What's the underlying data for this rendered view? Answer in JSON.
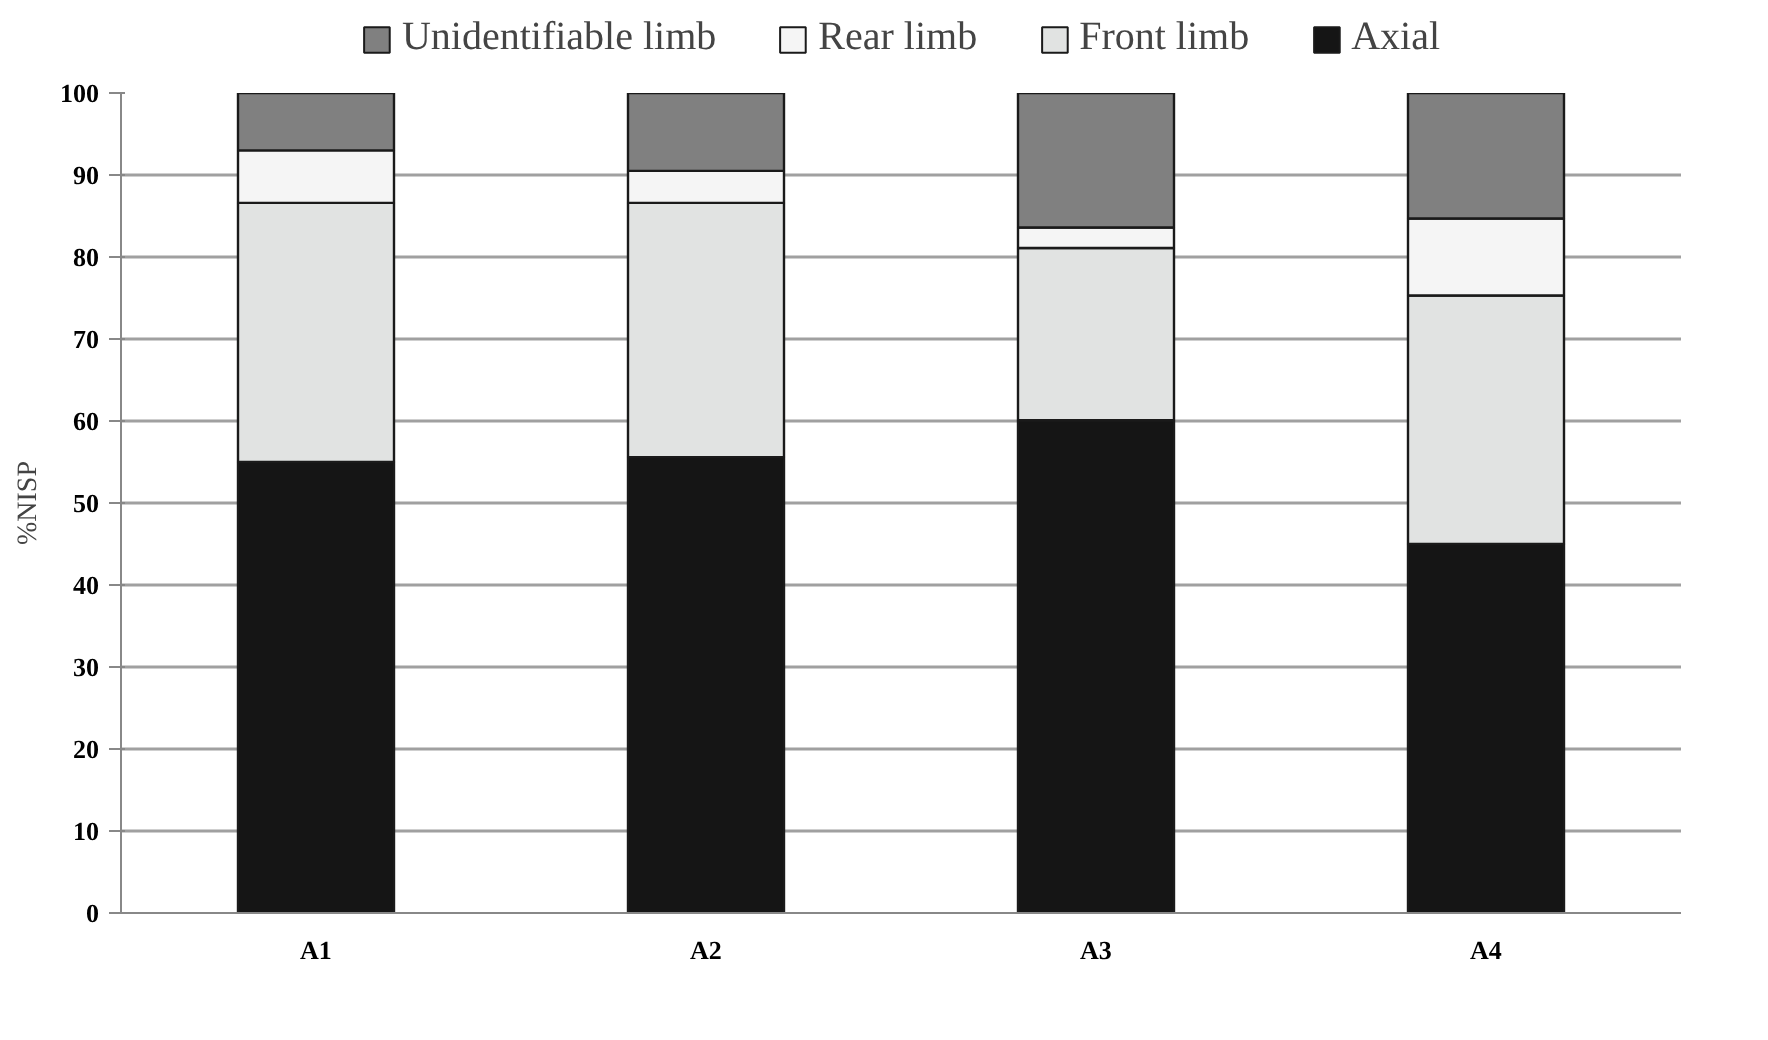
{
  "chart_data": {
    "type": "bar",
    "stacked": true,
    "ylabel": "%NISP",
    "categories": [
      "A1",
      "A2",
      "A3",
      "A4"
    ],
    "series": [
      {
        "name": "Axial",
        "color": "#151515",
        "values": [
          55,
          55.6,
          60.1,
          45
        ]
      },
      {
        "name": "Front limb",
        "color": "#e1e3e2",
        "values": [
          31.6,
          31,
          21,
          30.3
        ]
      },
      {
        "name": "Rear limb",
        "color": "#f5f5f5",
        "values": [
          6.4,
          3.9,
          2.5,
          9.4
        ]
      },
      {
        "name": "Unidentifiable limb",
        "color": "#808080",
        "values": [
          7,
          9.5,
          16.4,
          15.3
        ]
      }
    ],
    "ylim": [
      0,
      100
    ],
    "yticks": [
      0,
      10,
      20,
      30,
      40,
      50,
      60,
      70,
      80,
      90,
      100
    ],
    "grid": "y",
    "legend": "top"
  }
}
